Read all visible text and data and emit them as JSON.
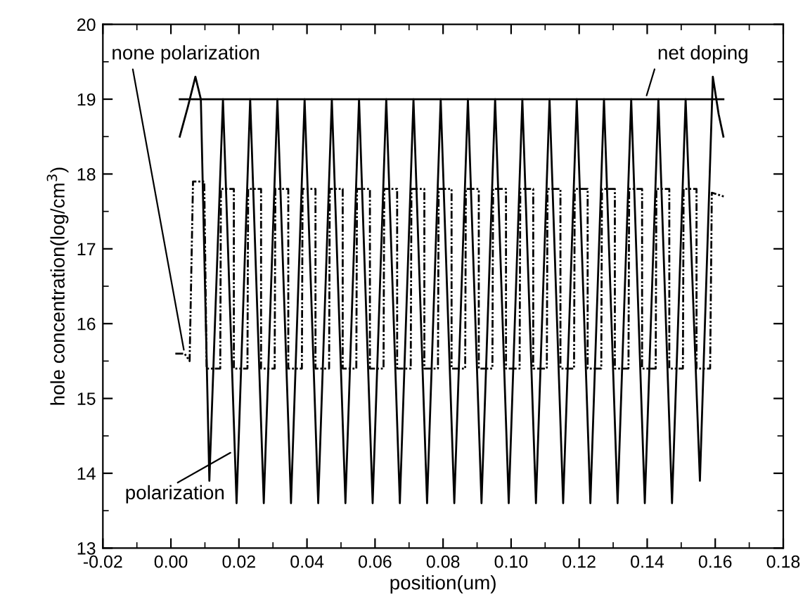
{
  "chart_data": {
    "type": "line",
    "xlabel": "position(um)",
    "ylabel": "hole concentration(log/cm$^{3}$)",
    "xlim": [
      -0.02,
      0.18
    ],
    "xticks": [
      -0.02,
      {
        "value": 0.0,
        "label": "0.00"
      },
      0.02,
      0.04,
      0.06,
      0.08,
      {
        "value": 0.1,
        "label": "0.10"
      },
      0.12,
      0.14,
      0.16,
      0.18
    ],
    "ylim": [
      13,
      20
    ],
    "yticks": [
      13,
      14,
      15,
      16,
      17,
      18,
      19,
      20
    ],
    "grid": false,
    "legend": false,
    "series": [
      {
        "color": "#000000",
        "line_style": "solid",
        "x": [
          0.0026,
          0.1624
        ],
        "values": [
          19,
          19
        ]
      },
      {
        "color": "#000000",
        "line_style": "solid",
        "x": [
          0.0026,
          0.005,
          0.0072,
          0.0088,
          0.0113,
          0.0153,
          0.0193,
          0.0233,
          0.0273,
          0.0313,
          0.0353,
          0.0393,
          0.0433,
          0.0473,
          0.0513,
          0.0553,
          0.0593,
          0.0633,
          0.0673,
          0.0713,
          0.0753,
          0.0793,
          0.0833,
          0.0873,
          0.0913,
          0.0953,
          0.0993,
          0.1033,
          0.1073,
          0.1113,
          0.1153,
          0.1193,
          0.1233,
          0.1273,
          0.1313,
          0.1353,
          0.1393,
          0.1433,
          0.1473,
          0.1513,
          0.1555,
          0.1593,
          0.161,
          0.1624
        ],
        "values": [
          18.5,
          18.9,
          19.3,
          19.0,
          13.9,
          19,
          13.6,
          19,
          13.6,
          19,
          13.6,
          19,
          13.6,
          19,
          13.6,
          19,
          13.6,
          19,
          13.6,
          19,
          13.6,
          19,
          13.6,
          19,
          13.6,
          19,
          13.6,
          19,
          13.6,
          19,
          13.6,
          19,
          13.6,
          19,
          13.6,
          19,
          13.6,
          19,
          13.6,
          19,
          13.9,
          19.3,
          18.8,
          18.5
        ]
      },
      {
        "color": "#000000",
        "line_style": "dashed",
        "x": [
          0.0013,
          0.004,
          0.0055,
          0.0065,
          0.0098,
          0.0105,
          0.0145,
          0.0147,
          0.0185,
          0.0185,
          0.0225,
          0.0227,
          0.0265,
          0.0265,
          0.0305,
          0.0307,
          0.0345,
          0.0345,
          0.0385,
          0.0387,
          0.0425,
          0.0425,
          0.0465,
          0.0467,
          0.0505,
          0.0505,
          0.0545,
          0.0547,
          0.0585,
          0.0585,
          0.0625,
          0.0627,
          0.0665,
          0.0665,
          0.0705,
          0.0707,
          0.0745,
          0.0745,
          0.0785,
          0.0787,
          0.0825,
          0.0825,
          0.0865,
          0.0867,
          0.0905,
          0.0905,
          0.0945,
          0.0947,
          0.0985,
          0.0985,
          0.1025,
          0.1027,
          0.1065,
          0.1065,
          0.1105,
          0.1107,
          0.1145,
          0.1145,
          0.1185,
          0.1187,
          0.1225,
          0.1225,
          0.1265,
          0.1267,
          0.1305,
          0.1305,
          0.1345,
          0.1347,
          0.1385,
          0.1385,
          0.1425,
          0.1427,
          0.1465,
          0.1465,
          0.1505,
          0.1507,
          0.1545,
          0.1545,
          0.1585,
          0.159,
          0.1625
        ],
        "values": [
          15.6,
          15.6,
          15.5,
          17.9,
          17.9,
          15.4,
          15.4,
          17.8,
          17.8,
          15.4,
          15.4,
          17.8,
          17.8,
          15.4,
          15.4,
          17.8,
          17.8,
          15.4,
          15.4,
          17.8,
          17.8,
          15.4,
          15.4,
          17.8,
          17.8,
          15.4,
          15.4,
          17.8,
          17.8,
          15.4,
          15.4,
          17.8,
          17.8,
          15.4,
          15.4,
          17.8,
          17.8,
          15.4,
          15.4,
          17.8,
          17.8,
          15.4,
          15.4,
          17.8,
          17.8,
          15.4,
          15.4,
          17.8,
          17.8,
          15.4,
          15.4,
          17.8,
          17.8,
          15.4,
          15.4,
          17.8,
          17.8,
          15.4,
          15.4,
          17.8,
          17.8,
          15.4,
          15.4,
          17.8,
          17.8,
          15.4,
          15.4,
          17.8,
          17.8,
          15.4,
          15.4,
          17.8,
          17.8,
          15.4,
          15.4,
          17.8,
          17.8,
          15.4,
          15.4,
          17.75,
          17.7
        ]
      }
    ],
    "annotations": [
      {
        "text": "none polarization",
        "x": 0.004,
        "y": 15.6
      },
      {
        "text": "polarization",
        "x": 0.0185,
        "y": 14.3
      },
      {
        "text": "net doping",
        "x": 0.1395,
        "y": 19.0
      }
    ]
  }
}
